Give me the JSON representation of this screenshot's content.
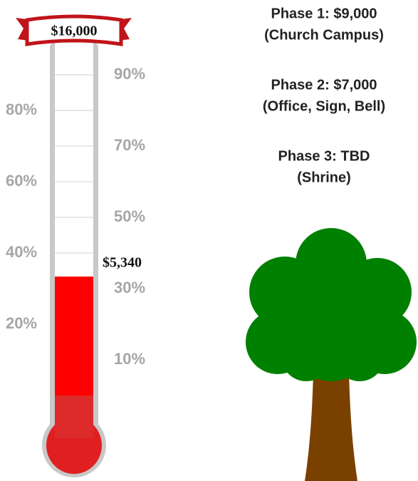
{
  "chart_data": {
    "type": "thermometer",
    "values": [
      5340
    ],
    "value_labels": [
      "$5,340"
    ],
    "color": "#ff0000",
    "goal": 16000,
    "goal_label": "$16,000",
    "ylim": [
      0,
      100
    ],
    "yticks": [
      {
        "value": 10,
        "label": "10%"
      },
      {
        "value": 20,
        "label": "20%"
      },
      {
        "value": 30,
        "label": "30%"
      },
      {
        "value": 40,
        "label": "40%"
      },
      {
        "value": 50,
        "label": "50%"
      },
      {
        "value": 60,
        "label": "60%"
      },
      {
        "value": 70,
        "label": "70%"
      },
      {
        "value": 80,
        "label": "80%"
      },
      {
        "value": 90,
        "label": "90%"
      }
    ],
    "annotations": [
      "Phase 1: $9,000",
      "(Church Campus)",
      "Phase 2: $7,000",
      "(Office, Sign, Bell)",
      "Phase 3: TBD",
      "(Shrine)"
    ]
  }
}
